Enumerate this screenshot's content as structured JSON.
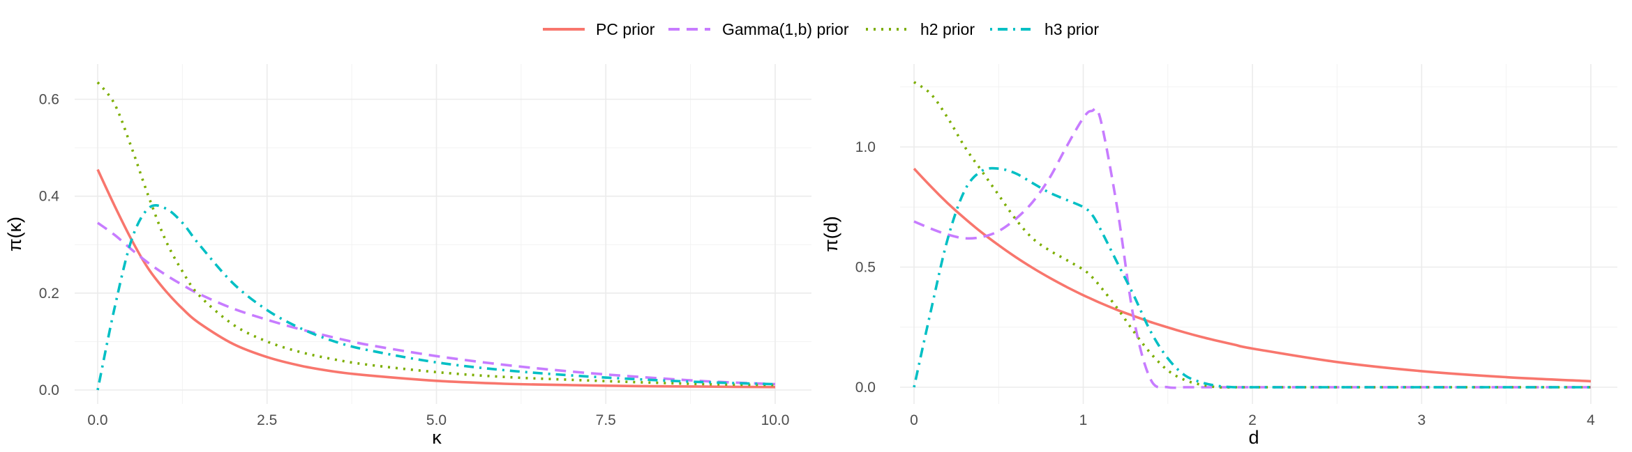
{
  "legend": {
    "position": "top",
    "entries": [
      {
        "label": "PC prior",
        "color": "#F8766D",
        "dash": "solid"
      },
      {
        "label": "Gamma(1,b) prior",
        "color": "#C77CFF",
        "dash": "dashed"
      },
      {
        "label": "h2 prior",
        "color": "#7CAE00",
        "dash": "dotted"
      },
      {
        "label": "h3 prior",
        "color": "#00BFC4",
        "dash": "dotdash"
      }
    ]
  },
  "chart_data": [
    {
      "type": "line",
      "xlabel": "κ",
      "ylabel": "π(κ)",
      "xlim": [
        0,
        10
      ],
      "ylim": [
        0,
        0.65
      ],
      "xticks": [
        0,
        2.5,
        5,
        7.5,
        10
      ],
      "xtick_labels": [
        "0.0",
        "2.5",
        "5.0",
        "7.5",
        "10.0"
      ],
      "yticks": [
        0,
        0.2,
        0.4,
        0.6
      ],
      "ytick_labels": [
        "0.0",
        "0.2",
        "0.4",
        "0.6"
      ],
      "grid": true,
      "x": [
        0,
        0.25,
        0.5,
        0.75,
        1,
        1.25,
        1.5,
        2,
        2.5,
        3,
        3.5,
        4,
        5,
        6,
        7,
        8,
        9,
        10
      ],
      "series": [
        {
          "name": "PC prior",
          "values": [
            0.455,
            0.38,
            0.31,
            0.25,
            0.205,
            0.168,
            0.138,
            0.095,
            0.068,
            0.05,
            0.038,
            0.03,
            0.019,
            0.013,
            0.01,
            0.008,
            0.007,
            0.006
          ]
        },
        {
          "name": "Gamma(1,b) prior",
          "values": [
            0.345,
            0.32,
            0.29,
            0.262,
            0.238,
            0.217,
            0.198,
            0.168,
            0.145,
            0.125,
            0.108,
            0.093,
            0.07,
            0.052,
            0.038,
            0.027,
            0.018,
            0.012
          ]
        },
        {
          "name": "h2 prior",
          "values": [
            0.635,
            0.59,
            0.5,
            0.4,
            0.31,
            0.245,
            0.195,
            0.135,
            0.1,
            0.078,
            0.063,
            0.052,
            0.037,
            0.027,
            0.021,
            0.016,
            0.012,
            0.01
          ]
        },
        {
          "name": "h3 prior",
          "values": [
            0.0,
            0.17,
            0.31,
            0.375,
            0.375,
            0.345,
            0.3,
            0.22,
            0.165,
            0.127,
            0.1,
            0.082,
            0.057,
            0.041,
            0.03,
            0.022,
            0.016,
            0.012
          ]
        }
      ]
    },
    {
      "type": "line",
      "xlabel": "d",
      "ylabel": "π(d)",
      "xlim": [
        0,
        4
      ],
      "ylim": [
        0,
        1.27
      ],
      "xticks": [
        0,
        1,
        2,
        3,
        4
      ],
      "xtick_labels": [
        "0",
        "1",
        "2",
        "3",
        "4"
      ],
      "yticks": [
        0,
        0.5,
        1.0
      ],
      "ytick_labels": [
        "0.0",
        "0.5",
        "1.0"
      ],
      "grid": true,
      "x": [
        0,
        0.1,
        0.2,
        0.3,
        0.4,
        0.5,
        0.6,
        0.7,
        0.8,
        0.9,
        1.0,
        1.05,
        1.1,
        1.2,
        1.3,
        1.4,
        1.5,
        1.6,
        1.7,
        1.8,
        1.9,
        2.0,
        2.5,
        3.0,
        3.5,
        4.0
      ],
      "series": [
        {
          "name": "PC prior",
          "values": [
            0.91,
            0.835,
            0.765,
            0.702,
            0.644,
            0.591,
            0.542,
            0.497,
            0.456,
            0.418,
            0.383,
            0.367,
            0.351,
            0.322,
            0.296,
            0.271,
            0.249,
            0.228,
            0.209,
            0.192,
            0.176,
            0.161,
            0.105,
            0.067,
            0.042,
            0.025
          ]
        },
        {
          "name": "Gamma(1,b) prior",
          "values": [
            0.69,
            0.66,
            0.635,
            0.62,
            0.625,
            0.65,
            0.7,
            0.77,
            0.87,
            1.0,
            1.12,
            1.15,
            1.12,
            0.75,
            0.28,
            0.03,
            0.0,
            0.0,
            0.0,
            0.0,
            0.0,
            0.0,
            0.0,
            0.0,
            0.0,
            0.0
          ]
        },
        {
          "name": "h2 prior",
          "values": [
            1.27,
            1.22,
            1.12,
            1.0,
            0.9,
            0.8,
            0.7,
            0.62,
            0.57,
            0.53,
            0.49,
            0.46,
            0.42,
            0.33,
            0.23,
            0.14,
            0.07,
            0.03,
            0.01,
            0.0,
            0.0,
            0.0,
            0.0,
            0.0,
            0.0,
            0.0
          ]
        },
        {
          "name": "h3 prior",
          "values": [
            0.0,
            0.32,
            0.62,
            0.82,
            0.9,
            0.91,
            0.89,
            0.85,
            0.81,
            0.78,
            0.75,
            0.72,
            0.66,
            0.52,
            0.38,
            0.23,
            0.12,
            0.05,
            0.02,
            0.005,
            0.0,
            0.0,
            0.0,
            0.0,
            0.0,
            0.0
          ]
        }
      ]
    }
  ]
}
